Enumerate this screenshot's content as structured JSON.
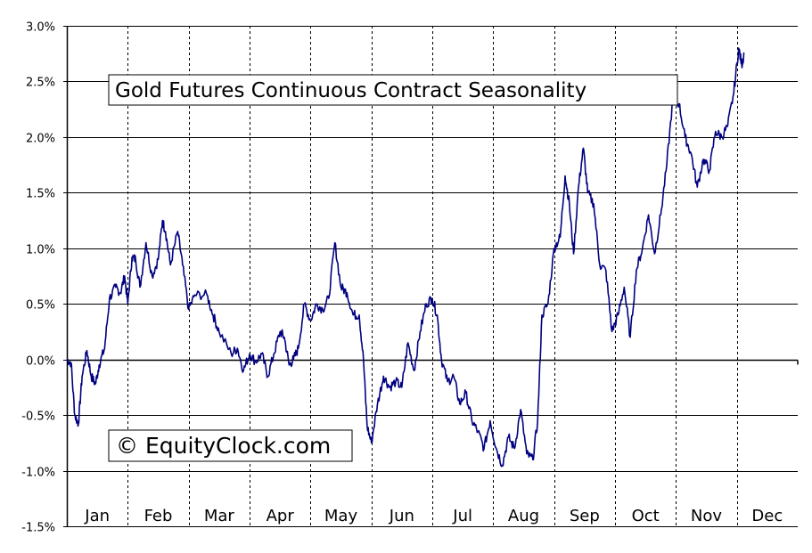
{
  "chart_data": {
    "type": "line",
    "title": "Gold Futures Continuous Contract Seasonality",
    "watermark": "© EquityClock.com",
    "xlabel": "",
    "ylabel": "",
    "ylim": [
      -1.5,
      3.0
    ],
    "y_ticks": [
      3.0,
      2.5,
      2.0,
      1.5,
      1.0,
      0.5,
      0.0,
      -0.5,
      -1.0,
      -1.5
    ],
    "y_tick_labels": [
      "3.0%",
      "2.5%",
      "2.0%",
      "1.5%",
      "1.0%",
      "0.5%",
      "0.0%",
      "-0.5%",
      "-1.0%",
      "-1.5%"
    ],
    "x_unit": "month",
    "xlim": [
      0,
      12
    ],
    "categories": [
      "Jan",
      "Feb",
      "Mar",
      "Apr",
      "May",
      "Jun",
      "Jul",
      "Aug",
      "Sep",
      "Oct",
      "Nov",
      "Dec"
    ],
    "grid": true,
    "line_color": "#000080",
    "series": [
      {
        "values": [
          [
            0.0,
            0.0
          ],
          [
            0.07,
            -0.03
          ],
          [
            0.13,
            -0.5
          ],
          [
            0.19,
            -0.58
          ],
          [
            0.25,
            -0.15
          ],
          [
            0.33,
            0.08
          ],
          [
            0.4,
            -0.15
          ],
          [
            0.47,
            -0.22
          ],
          [
            0.53,
            -0.05
          ],
          [
            0.62,
            0.1
          ],
          [
            0.7,
            0.55
          ],
          [
            0.8,
            0.65
          ],
          [
            0.88,
            0.6
          ],
          [
            0.95,
            0.75
          ],
          [
            1.0,
            0.5
          ],
          [
            1.07,
            0.92
          ],
          [
            1.13,
            0.9
          ],
          [
            1.2,
            0.65
          ],
          [
            1.3,
            1.05
          ],
          [
            1.4,
            0.75
          ],
          [
            1.5,
            0.9
          ],
          [
            1.57,
            1.25
          ],
          [
            1.62,
            1.15
          ],
          [
            1.7,
            0.85
          ],
          [
            1.82,
            1.15
          ],
          [
            1.9,
            0.85
          ],
          [
            2.0,
            0.45
          ],
          [
            2.1,
            0.58
          ],
          [
            2.3,
            0.58
          ],
          [
            2.4,
            0.4
          ],
          [
            2.5,
            0.25
          ],
          [
            2.7,
            0.05
          ],
          [
            2.8,
            0.1
          ],
          [
            2.9,
            -0.1
          ],
          [
            3.0,
            0.05
          ],
          [
            3.1,
            -0.02
          ],
          [
            3.2,
            0.05
          ],
          [
            3.3,
            -0.15
          ],
          [
            3.4,
            0.05
          ],
          [
            3.5,
            0.25
          ],
          [
            3.57,
            0.2
          ],
          [
            3.65,
            -0.05
          ],
          [
            3.72,
            0.0
          ],
          [
            3.8,
            0.1
          ],
          [
            3.9,
            0.5
          ],
          [
            4.0,
            0.35
          ],
          [
            4.1,
            0.5
          ],
          [
            4.2,
            0.45
          ],
          [
            4.3,
            0.55
          ],
          [
            4.4,
            1.05
          ],
          [
            4.5,
            0.65
          ],
          [
            4.6,
            0.6
          ],
          [
            4.7,
            0.4
          ],
          [
            4.8,
            0.4
          ],
          [
            4.87,
            0.0
          ],
          [
            4.93,
            -0.6
          ],
          [
            5.0,
            -0.75
          ],
          [
            5.1,
            -0.4
          ],
          [
            5.2,
            -0.15
          ],
          [
            5.3,
            -0.25
          ],
          [
            5.4,
            -0.2
          ],
          [
            5.5,
            -0.25
          ],
          [
            5.6,
            0.15
          ],
          [
            5.7,
            -0.1
          ],
          [
            5.8,
            0.25
          ],
          [
            5.9,
            0.5
          ],
          [
            6.0,
            0.55
          ],
          [
            6.08,
            0.4
          ],
          [
            6.15,
            0.0
          ],
          [
            6.25,
            -0.2
          ],
          [
            6.35,
            -0.15
          ],
          [
            6.45,
            -0.4
          ],
          [
            6.55,
            -0.3
          ],
          [
            6.65,
            -0.55
          ],
          [
            6.75,
            -0.65
          ],
          [
            6.85,
            -0.8
          ],
          [
            6.95,
            -0.55
          ],
          [
            7.05,
            -0.8
          ],
          [
            7.15,
            -0.95
          ],
          [
            7.25,
            -0.7
          ],
          [
            7.35,
            -0.8
          ],
          [
            7.45,
            -0.45
          ],
          [
            7.55,
            -0.85
          ],
          [
            7.65,
            -0.9
          ],
          [
            7.73,
            -0.55
          ],
          [
            7.8,
            0.4
          ],
          [
            7.9,
            0.5
          ],
          [
            8.0,
            1.0
          ],
          [
            8.1,
            1.1
          ],
          [
            8.18,
            1.65
          ],
          [
            8.25,
            1.4
          ],
          [
            8.32,
            0.95
          ],
          [
            8.4,
            1.55
          ],
          [
            8.48,
            1.9
          ],
          [
            8.55,
            1.5
          ],
          [
            8.65,
            1.4
          ],
          [
            8.75,
            0.85
          ],
          [
            8.85,
            0.8
          ],
          [
            8.95,
            0.25
          ],
          [
            9.05,
            0.4
          ],
          [
            9.15,
            0.65
          ],
          [
            9.25,
            0.2
          ],
          [
            9.35,
            0.8
          ],
          [
            9.45,
            1.0
          ],
          [
            9.55,
            1.3
          ],
          [
            9.65,
            0.95
          ],
          [
            9.75,
            1.3
          ],
          [
            9.85,
            1.75
          ],
          [
            9.95,
            2.35
          ],
          [
            10.05,
            2.3
          ],
          [
            10.15,
            2.0
          ],
          [
            10.25,
            1.85
          ],
          [
            10.35,
            1.55
          ],
          [
            10.45,
            1.8
          ],
          [
            10.55,
            1.7
          ],
          [
            10.65,
            2.05
          ],
          [
            10.75,
            2.0
          ],
          [
            10.85,
            2.1
          ],
          [
            10.95,
            2.4
          ],
          [
            11.03,
            2.8
          ],
          [
            11.08,
            2.65
          ],
          [
            11.12,
            2.75
          ]
        ]
      }
    ]
  }
}
